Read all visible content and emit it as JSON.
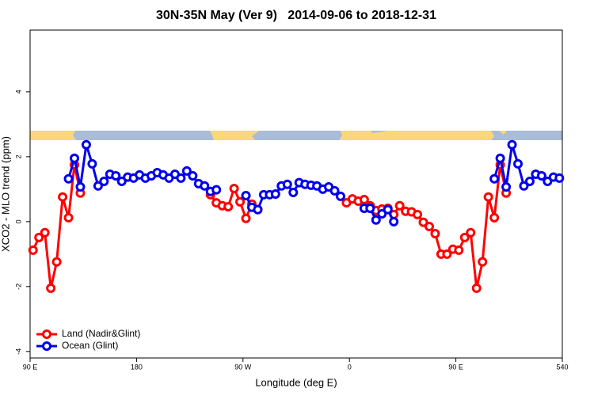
{
  "chart_data": {
    "type": "line",
    "title": "30N-35N May (Ver 9)   2014-09-06 to 2018-12-31",
    "x_label": "Longitude (deg E)",
    "y_label": "XCO2 - MLO trend (ppm)",
    "xlim": [
      90,
      540
    ],
    "xticks": [
      {
        "value": 90,
        "label": "90 E"
      },
      180,
      {
        "value": 270,
        "label": "90 W"
      },
      {
        "value": 360,
        "label": "0"
      },
      {
        "value": 450,
        "label": "90 E"
      },
      540
    ],
    "ylim": [
      -4.2,
      5.9
    ],
    "yticks": [
      -4,
      -2,
      0,
      2,
      4
    ],
    "legend": "bottom-left",
    "grid": false,
    "series": [
      {
        "name": "Land (Nadir&Glint)",
        "color": "#ff0000",
        "x": [
          92.5,
          97.5,
          102.5,
          107.5,
          112.5,
          117.5,
          122.5,
          127.5,
          132.5,
          137.5,
          242.5,
          247.5,
          252.5,
          257.5,
          262.5,
          267.5,
          272.5,
          277.5,
          282.5,
          287.5,
          357.5,
          362.5,
          367.5,
          372.5,
          377.5,
          382.5,
          387.5,
          392.5,
          397.5,
          402.5,
          407.5,
          412.5,
          417.5,
          422.5,
          427.5,
          432.5,
          437.5,
          442.5,
          447.5,
          452.5,
          457.5,
          462.5,
          467.5,
          472.5,
          477.5,
          482.5,
          487.5,
          492.5
        ],
        "values": [
          -0.88,
          -0.49,
          -0.34,
          -2.05,
          -1.24,
          0.76,
          0.12,
          1.75,
          0.88,
          null,
          0.83,
          0.58,
          0.49,
          0.46,
          1.02,
          0.61,
          0.1,
          0.54,
          0.37,
          null,
          0.58,
          0.7,
          0.63,
          0.68,
          0.49,
          0.34,
          0.39,
          0.41,
          0.22,
          0.49,
          0.32,
          0.3,
          0.22,
          -0.02,
          -0.15,
          -0.37,
          -1.0,
          -1.0,
          -0.85,
          -0.88,
          -0.49,
          -0.34,
          -2.05,
          -1.24,
          0.76,
          0.12,
          1.75,
          0.88
        ]
      },
      {
        "name": "Ocean (Glint)",
        "color": "#0000ee",
        "x": [
          122.5,
          127.5,
          132.5,
          137.5,
          142.5,
          147.5,
          152.5,
          157.5,
          162.5,
          167.5,
          172.5,
          177.5,
          182.5,
          187.5,
          192.5,
          197.5,
          202.5,
          207.5,
          212.5,
          217.5,
          222.5,
          227.5,
          232.5,
          237.5,
          242.5,
          247.5,
          252.5,
          272.5,
          277.5,
          282.5,
          287.5,
          292.5,
          297.5,
          302.5,
          307.5,
          312.5,
          317.5,
          322.5,
          327.5,
          332.5,
          337.5,
          342.5,
          347.5,
          352.5,
          357.5,
          372.5,
          377.5,
          382.5,
          387.5,
          392.5,
          397.5,
          402.5,
          482.5,
          487.5,
          492.5,
          497.5,
          502.5,
          507.5,
          512.5,
          517.5,
          522.5,
          527.5,
          532.5,
          537.5
        ],
        "values": [
          1.32,
          1.95,
          1.07,
          2.37,
          1.78,
          1.1,
          1.24,
          1.46,
          1.41,
          1.24,
          1.37,
          1.34,
          1.44,
          1.34,
          1.41,
          1.51,
          1.44,
          1.34,
          1.46,
          1.34,
          1.56,
          1.41,
          1.17,
          1.1,
          0.93,
          0.98,
          null,
          0.8,
          0.44,
          0.37,
          0.83,
          0.83,
          0.85,
          1.1,
          1.15,
          0.9,
          1.2,
          1.15,
          1.12,
          1.1,
          1.0,
          1.07,
          0.95,
          0.78,
          null,
          0.41,
          0.41,
          0.05,
          0.24,
          0.37,
          0.0,
          null,
          1.32,
          1.95,
          1.07,
          2.37,
          1.78,
          1.1,
          1.24,
          1.46,
          1.41,
          1.24,
          1.37,
          1.34
        ]
      }
    ]
  }
}
